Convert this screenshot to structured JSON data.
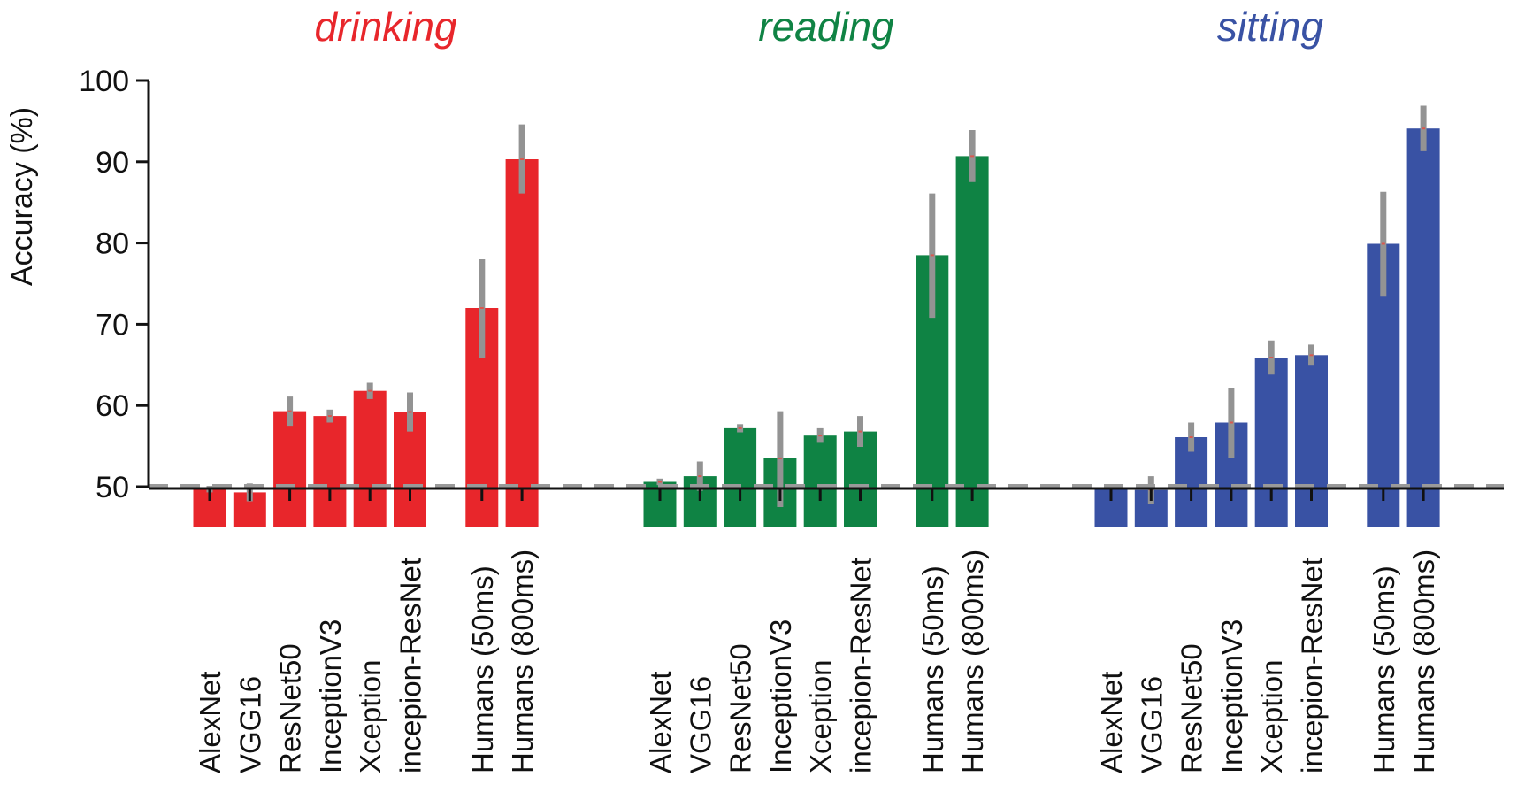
{
  "chart_data": {
    "type": "bar",
    "ylabel": "Accuracy (%)",
    "ylim": [
      45,
      100
    ],
    "yticks": [
      50,
      60,
      70,
      80,
      90,
      100
    ],
    "chance_level": 50,
    "categories": [
      "AlexNet",
      "VGG16",
      "ResNet50",
      "InceptionV3",
      "Xception",
      "incepion-ResNet",
      "Humans (50ms)",
      "Humans (800ms)"
    ],
    "series": [
      {
        "name": "drinking",
        "color": "#e8262b",
        "values": [
          49.7,
          49.3,
          59.3,
          58.7,
          61.8,
          59.2,
          72.0,
          90.3
        ],
        "err_low": [
          49.3,
          48.2,
          57.5,
          57.9,
          60.8,
          56.8,
          65.8,
          86.1
        ],
        "err_high": [
          50.1,
          50.4,
          61.1,
          59.5,
          62.8,
          61.6,
          78.0,
          94.6
        ]
      },
      {
        "name": "reading",
        "color": "#0f8344",
        "values": [
          50.6,
          51.3,
          57.2,
          53.5,
          56.3,
          56.8,
          78.5,
          90.7
        ],
        "err_low": [
          50.2,
          49.5,
          56.7,
          47.5,
          55.4,
          54.9,
          70.8,
          87.5
        ],
        "err_high": [
          51.0,
          53.1,
          57.7,
          59.3,
          57.2,
          58.7,
          86.1,
          93.9
        ]
      },
      {
        "name": "sitting",
        "color": "#3952a4",
        "values": [
          49.9,
          49.6,
          56.1,
          57.9,
          65.9,
          66.2,
          79.9,
          94.1
        ],
        "err_low": [
          49.8,
          47.9,
          54.3,
          53.5,
          63.8,
          64.9,
          73.4,
          91.3
        ],
        "err_high": [
          50.0,
          51.3,
          57.9,
          62.2,
          68.0,
          67.5,
          86.3,
          96.9
        ]
      }
    ],
    "error_bar_color": "#939393",
    "chance_line_color": "#9a9a9a"
  }
}
